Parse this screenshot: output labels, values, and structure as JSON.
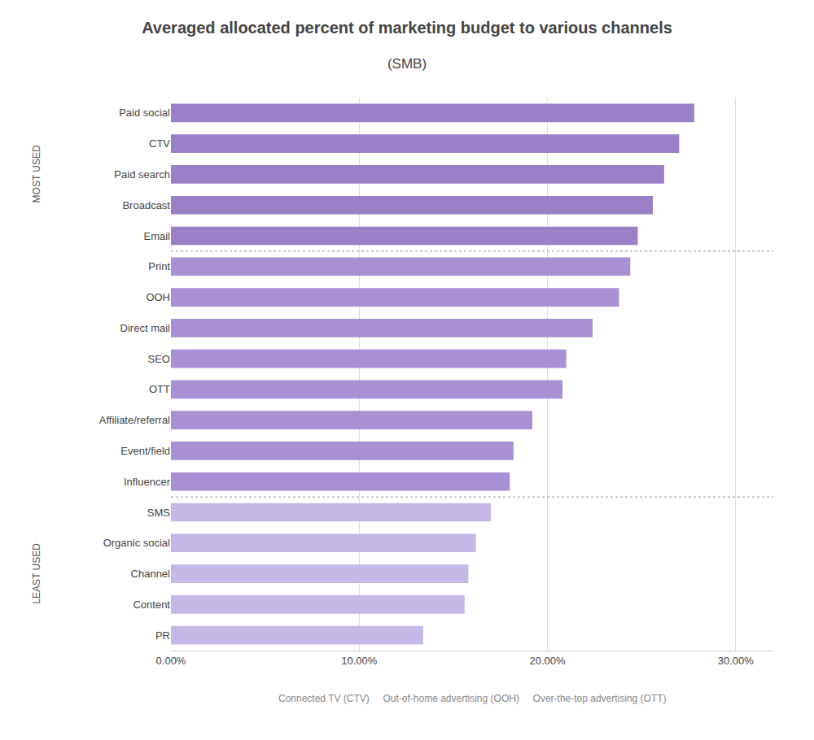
{
  "chart_data": {
    "type": "bar",
    "orientation": "horizontal",
    "title": "Averaged allocated percent of marketing budget to various channels",
    "subtitle": "(SMB)",
    "categories": [
      "Paid social",
      "CTV",
      "Paid search",
      "Broadcast",
      "Email",
      "Print",
      "OOH",
      "Direct mail",
      "SEO",
      "OTT",
      "Affiliate/referral",
      "Event/field",
      "Influencer",
      "SMS",
      "Organic social",
      "Channel",
      "Content",
      "PR"
    ],
    "values": [
      0.278,
      0.27,
      0.262,
      0.256,
      0.248,
      0.244,
      0.238,
      0.224,
      0.21,
      0.208,
      0.192,
      0.182,
      0.18,
      0.17,
      0.162,
      0.158,
      0.156,
      0.134
    ],
    "colors": [
      "#9b7fc7",
      "#9b7fc7",
      "#9b7fc7",
      "#9b7fc7",
      "#9b7fc7",
      "#a98fd4",
      "#a98fd4",
      "#a98fd4",
      "#a98fd4",
      "#a98fd4",
      "#a98fd4",
      "#a98fd4",
      "#a98fd4",
      "#c5b8e8",
      "#c5b8e8",
      "#c5b8e8",
      "#c5b8e8",
      "#c5b8e8"
    ],
    "xlim": [
      0,
      0.32
    ],
    "xticks": [
      {
        "value": 0.0,
        "label": "0.00%"
      },
      {
        "value": 0.1,
        "label": "10.00%"
      },
      {
        "value": 0.2,
        "label": "20.00%"
      },
      {
        "value": 0.3,
        "label": "30.00%"
      }
    ],
    "grid": true,
    "annotations": [
      "MOST USED",
      "LEAST USED"
    ],
    "footnote": "Connected TV (CTV)     Out-of-home advertising (OOH)     Over-the-top advertising (OTT)"
  }
}
